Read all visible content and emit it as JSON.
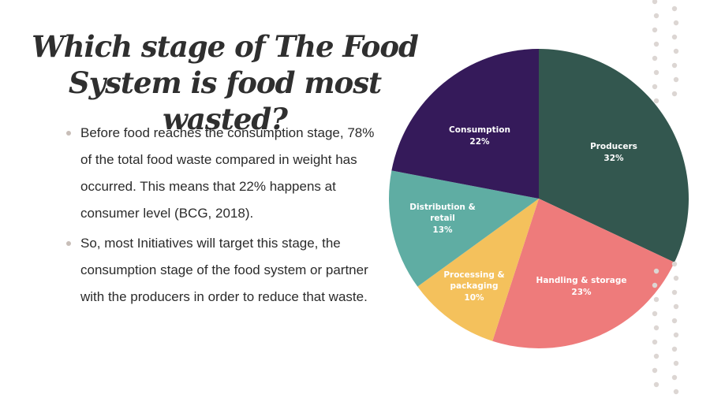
{
  "slide": {
    "title_line1": "Which stage of The Food",
    "title_line2": "System is food most wasted?",
    "bullets": [
      "Before food reaches the consumption stage, 78% of the total food waste compared in weight has occurred. This means that 22% happens at consumer level (BCG, 2018).",
      "So, most Initiatives will target this stage, the consumption stage of the food system or partner with the producers in order to reduce that waste."
    ]
  },
  "chart_data": {
    "type": "pie",
    "title": "",
    "start_angle_deg": 0,
    "direction": "clockwise",
    "slices": [
      {
        "label": "Producers",
        "value": 32,
        "display": "32%",
        "color": "#33574f"
      },
      {
        "label": "Handling & storage",
        "value": 23,
        "display": "23%",
        "color": "#ee7b7b"
      },
      {
        "label": "Processing & packaging",
        "value": 10,
        "display": "10%",
        "color": "#f4c15c"
      },
      {
        "label": "Distribution & retail",
        "value": 13,
        "display": "13%",
        "color": "#5fada3"
      },
      {
        "label": "Consumption",
        "value": 22,
        "display": "22%",
        "color": "#351a5a"
      }
    ],
    "legend": "none (labels inside slices)"
  },
  "labels": {
    "producers": [
      "Producers",
      "32%"
    ],
    "handling": [
      "Handling & storage",
      "23%"
    ],
    "processing": [
      "Processing &",
      "packaging",
      "10%"
    ],
    "distribution": [
      "Distribution &",
      "retail",
      "13%"
    ],
    "consumption": [
      "Consumption",
      "22%"
    ]
  }
}
